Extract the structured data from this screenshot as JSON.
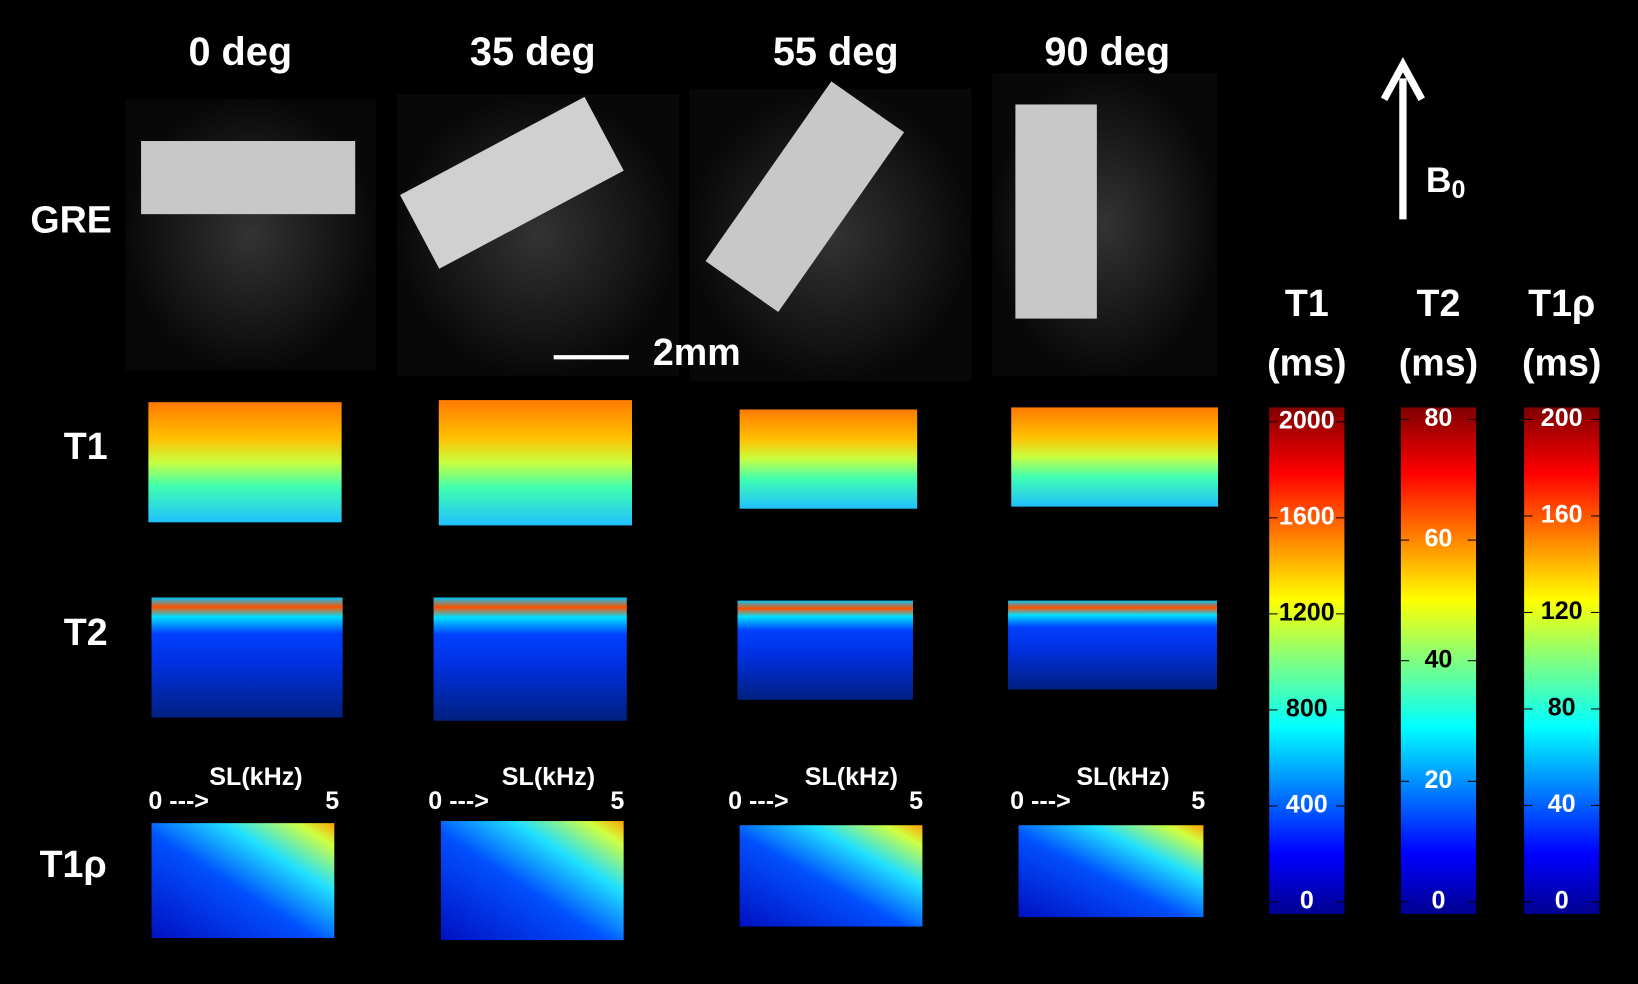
{
  "columns": [
    "0 deg",
    "35 deg",
    "55 deg",
    "90 deg"
  ],
  "rows": [
    "GRE",
    "T1",
    "T2",
    "T1ρ"
  ],
  "scale_bar": "2mm",
  "field": {
    "label": "B",
    "subscript": "0"
  },
  "sl_axis": {
    "label": "SL(kHz)",
    "start": "0 --->",
    "end": "5"
  },
  "colorbars": [
    {
      "title": "T1",
      "unit": "(ms)",
      "lim": [
        -50,
        2060
      ],
      "ticks": [
        0,
        400,
        800,
        1200,
        1600,
        2000
      ]
    },
    {
      "title": "T2",
      "unit": "(ms)",
      "lim": [
        -2,
        82
      ],
      "ticks": [
        0,
        20,
        40,
        60,
        80
      ]
    },
    {
      "title": "T1ρ",
      "unit": "(ms)",
      "lim": [
        -5,
        205
      ],
      "ticks": [
        0,
        40,
        80,
        120,
        160,
        200
      ]
    }
  ]
}
